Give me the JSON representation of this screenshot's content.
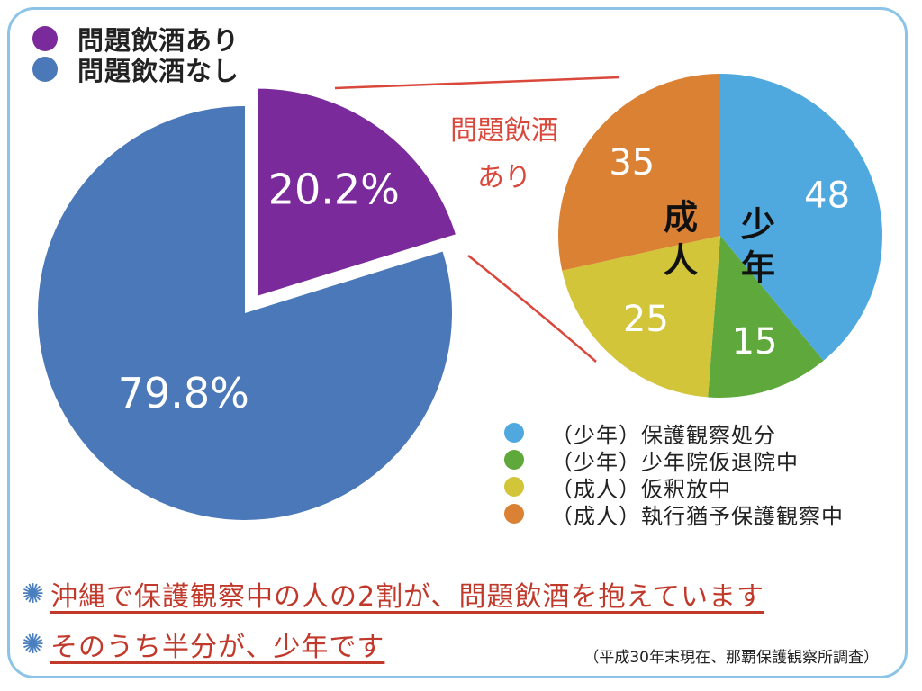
{
  "chart_data": [
    {
      "type": "pie",
      "title": "",
      "legend": [
        {
          "name": "問題飲酒あり",
          "color": "#7b2a9b"
        },
        {
          "name": "問題飲酒なし",
          "color": "#4a78b8"
        }
      ],
      "slices": [
        {
          "name": "問題飲酒あり",
          "value": 20.2,
          "label": "20.2%",
          "color": "#7b2a9b",
          "exploded": true
        },
        {
          "name": "問題飲酒なし",
          "value": 79.8,
          "label": "79.8%",
          "color": "#4a78b8"
        }
      ]
    },
    {
      "type": "pie",
      "title": "問題飲酒あり",
      "title_lines": [
        "問題飲酒",
        "あり"
      ],
      "group_labels": {
        "youth": [
          "少",
          "年"
        ],
        "adult": [
          "成",
          "人"
        ]
      },
      "slices": [
        {
          "name": "（少年）保護観察処分",
          "value": 48,
          "label": "48",
          "color": "#4fa9df"
        },
        {
          "name": "（少年）少年院仮退院中",
          "value": 15,
          "label": "15",
          "color": "#5fa83b"
        },
        {
          "name": "（成人）仮釈放中",
          "value": 25,
          "label": "25",
          "color": "#d2c53a"
        },
        {
          "name": "（成人）執行猶予保護観察中",
          "value": 35,
          "label": "35",
          "color": "#db8134"
        }
      ]
    }
  ],
  "notes": [
    {
      "mark": "✺",
      "text": "沖縄で保護観察中の人の2割が、問題飲酒を抱えています"
    },
    {
      "mark": "✺",
      "text": "そのうち半分が、少年です"
    }
  ],
  "survey_note": "（平成30年末現在、那覇保護観察所調査）"
}
